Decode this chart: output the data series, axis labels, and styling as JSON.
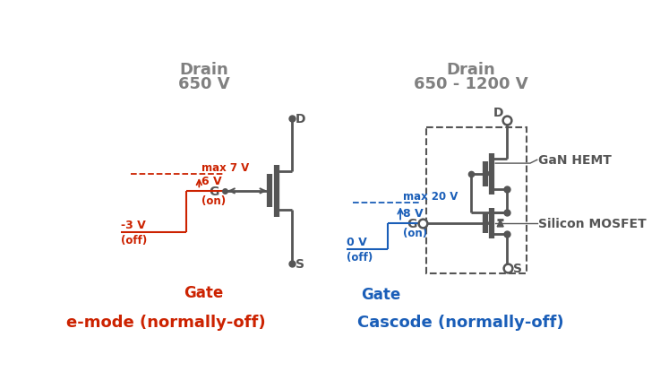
{
  "bg_color": "#ffffff",
  "dark_color": "#555555",
  "red_color": "#cc2200",
  "blue_color": "#1a5eb8",
  "title_color": "#808080",
  "left_title1": "Drain",
  "left_title2": "650 V",
  "right_title1": "Drain",
  "right_title2": "650 - 1200 V",
  "left_label": "e-mode (normally-off)",
  "right_label": "Cascode (normally-off)",
  "left_gate_label": "Gate",
  "right_gate_label": "Gate",
  "left_max": "max 7 V",
  "left_on_v": "6 V",
  "left_on": "(on)",
  "left_off_v": "-3 V",
  "left_off": "(off)",
  "right_max": "max 20 V",
  "right_on_v": "8 V",
  "right_on": "(on)",
  "right_off_v": "0 V",
  "right_off": "(off)",
  "gan_hemt": "GaN HEMT",
  "silicon_mosfet": "Silicon MOSFET"
}
